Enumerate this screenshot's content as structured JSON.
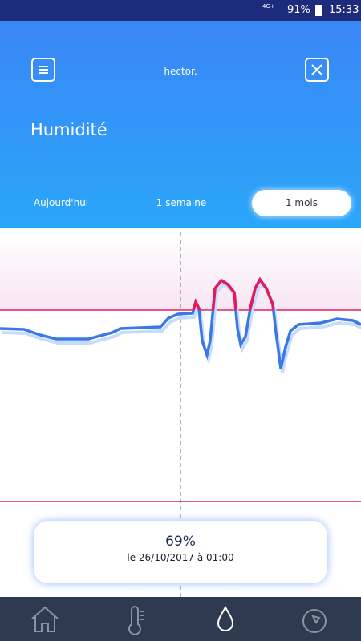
{
  "status_bar": {
    "network": "4G+",
    "battery": "91%",
    "time": "15:33"
  },
  "header": {
    "app_name": "hector.",
    "title": "Humidité"
  },
  "tabs": {
    "items": [
      "Aujourd'hui",
      "1 semaine",
      "1 mois"
    ],
    "selected": 2
  },
  "tooltip": {
    "value": "69%",
    "date": "le 26/10/2017 à 01:00"
  }
}
